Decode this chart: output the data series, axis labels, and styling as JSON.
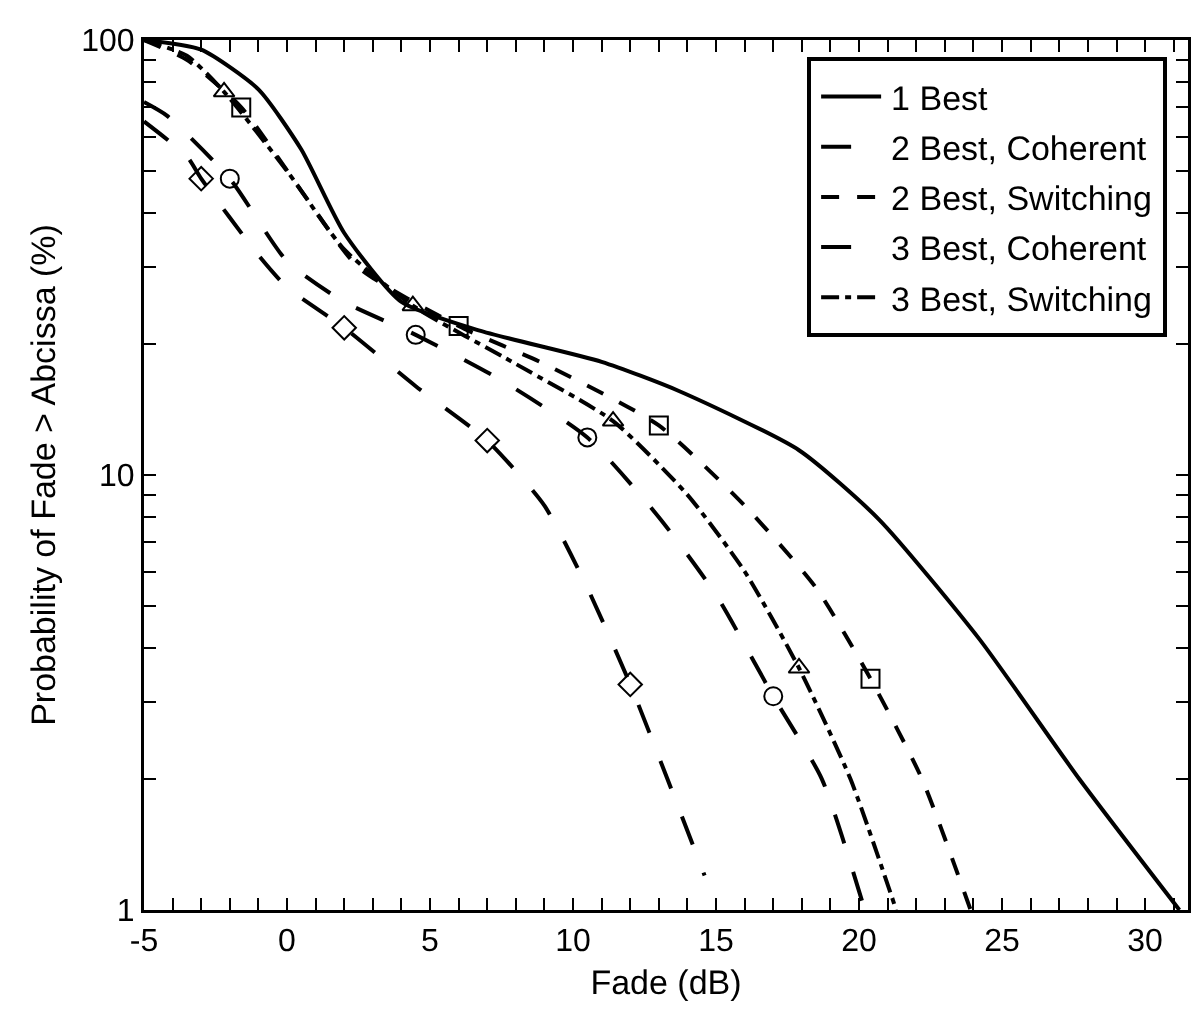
{
  "chart_data": {
    "type": "line",
    "xlabel": "Fade (dB)",
    "ylabel": "Probability of Fade > Abcissa (%)",
    "log": "y",
    "grid": false,
    "legend": "top right",
    "xlim": [
      -5,
      31.5
    ],
    "xticks": [
      -5,
      {
        "value": -4,
        "label": null
      },
      {
        "value": -3,
        "label": null
      },
      {
        "value": -2,
        "label": null
      },
      {
        "value": -1,
        "label": null
      },
      0,
      {
        "value": 1,
        "label": null
      },
      {
        "value": 2,
        "label": null
      },
      {
        "value": 3,
        "label": null
      },
      {
        "value": 4,
        "label": null
      },
      5,
      {
        "value": 6,
        "label": null
      },
      {
        "value": 7,
        "label": null
      },
      {
        "value": 8,
        "label": null
      },
      {
        "value": 9,
        "label": null
      },
      10,
      {
        "value": 11,
        "label": null
      },
      {
        "value": 12,
        "label": null
      },
      {
        "value": 13,
        "label": null
      },
      {
        "value": 14,
        "label": null
      },
      15,
      {
        "value": 16,
        "label": null
      },
      {
        "value": 17,
        "label": null
      },
      {
        "value": 18,
        "label": null
      },
      {
        "value": 19,
        "label": null
      },
      20,
      {
        "value": 21,
        "label": null
      },
      {
        "value": 22,
        "label": null
      },
      {
        "value": 23,
        "label": null
      },
      {
        "value": 24,
        "label": null
      },
      25,
      {
        "value": 26,
        "label": null
      },
      {
        "value": 27,
        "label": null
      },
      {
        "value": 28,
        "label": null
      },
      {
        "value": 29,
        "label": null
      },
      30,
      {
        "value": 31,
        "label": null
      }
    ],
    "ylim": [
      1,
      100
    ],
    "yticks": [
      1,
      {
        "value": 2,
        "label": null
      },
      {
        "value": 3,
        "label": null
      },
      {
        "value": 4,
        "label": null
      },
      {
        "value": 5,
        "label": null
      },
      {
        "value": 6,
        "label": null
      },
      {
        "value": 7,
        "label": null
      },
      {
        "value": 8,
        "label": null
      },
      {
        "value": 9,
        "label": null
      },
      10,
      {
        "value": 20,
        "label": null
      },
      {
        "value": 30,
        "label": null
      },
      {
        "value": 40,
        "label": null
      },
      {
        "value": 50,
        "label": null
      },
      {
        "value": 60,
        "label": null
      },
      {
        "value": 70,
        "label": null
      },
      {
        "value": 80,
        "label": null
      },
      {
        "value": 90,
        "label": null
      },
      100
    ],
    "series": [
      {
        "name": "1 Best",
        "color": "#000000",
        "line_style": "solid",
        "marker": "none",
        "x": [
          -5,
          -3,
          -1,
          0.5,
          2,
          4,
          6.7,
          11,
          13.7,
          17.9,
          20.7,
          24.2,
          27.7,
          31.2
        ],
        "values": [
          100,
          95,
          77,
          56,
          36,
          25,
          21.5,
          18.2,
          15.6,
          11.4,
          7.9,
          4.2,
          2,
          1
        ]
      },
      {
        "name": "2 Best, Coherent",
        "color": "#000000",
        "line_style": "longdash",
        "marker": "none",
        "x": [
          -5,
          -4.2,
          -2,
          0,
          2,
          4.5,
          7.5,
          10.5,
          13,
          15,
          17,
          18.7,
          20.2
        ],
        "values": [
          72,
          67,
          48,
          31,
          25,
          21,
          16.5,
          12.2,
          8,
          5.3,
          3.1,
          2,
          1
        ]
      },
      {
        "name": "2 Best, Switching",
        "color": "#000000",
        "line_style": "dashed",
        "marker": "none",
        "x": [
          -5,
          -3.5,
          -1.6,
          0.5,
          2.5,
          6,
          9,
          13,
          16,
          18.5,
          20.4,
          22.2,
          23.9
        ],
        "values": [
          100,
          90,
          70,
          45,
          30,
          22,
          18,
          13,
          8.5,
          5.5,
          3.4,
          2,
          1
        ]
      },
      {
        "name": "3 Best, Coherent",
        "color": "#000000",
        "line_style": "longdash",
        "marker": "none",
        "x": [
          -5,
          -3.5,
          -3,
          -1,
          0,
          2,
          4.5,
          7,
          9,
          10.5,
          12,
          13.3,
          14.6
        ],
        "values": [
          65,
          54,
          48,
          32,
          27,
          21.8,
          16,
          12,
          8.5,
          5.5,
          3.3,
          2,
          1.2
        ]
      },
      {
        "name": "3 Best, Switching",
        "color": "#000000",
        "line_style": "dashdot",
        "marker": "none",
        "x": [
          -5,
          -3.5,
          -2.2,
          0,
          2,
          4.4,
          8,
          11.4,
          14,
          16,
          17.9,
          19.7,
          21.3
        ],
        "values": [
          100,
          92,
          76,
          50,
          33,
          24.5,
          18,
          13.3,
          9,
          6,
          3.6,
          2,
          1
        ]
      },
      {
        "type": "scatter",
        "color": "#000000",
        "marker": "circle",
        "x": [
          -2,
          4.5,
          10.5,
          17
        ],
        "values": [
          48,
          21,
          12.2,
          3.1
        ]
      },
      {
        "type": "scatter",
        "color": "#000000",
        "marker": "square",
        "x": [
          -1.6,
          6,
          13,
          20.4
        ],
        "values": [
          70,
          22,
          13,
          3.4
        ]
      },
      {
        "type": "scatter",
        "color": "#000000",
        "marker": "diamond",
        "x": [
          -3,
          2,
          7,
          12
        ],
        "values": [
          48,
          21.8,
          12,
          3.3
        ]
      },
      {
        "type": "scatter",
        "color": "#000000",
        "marker": "triangle",
        "x": [
          -2.2,
          4.4,
          11.4,
          17.9
        ],
        "values": [
          76,
          24.5,
          13.3,
          3.6
        ]
      }
    ]
  }
}
